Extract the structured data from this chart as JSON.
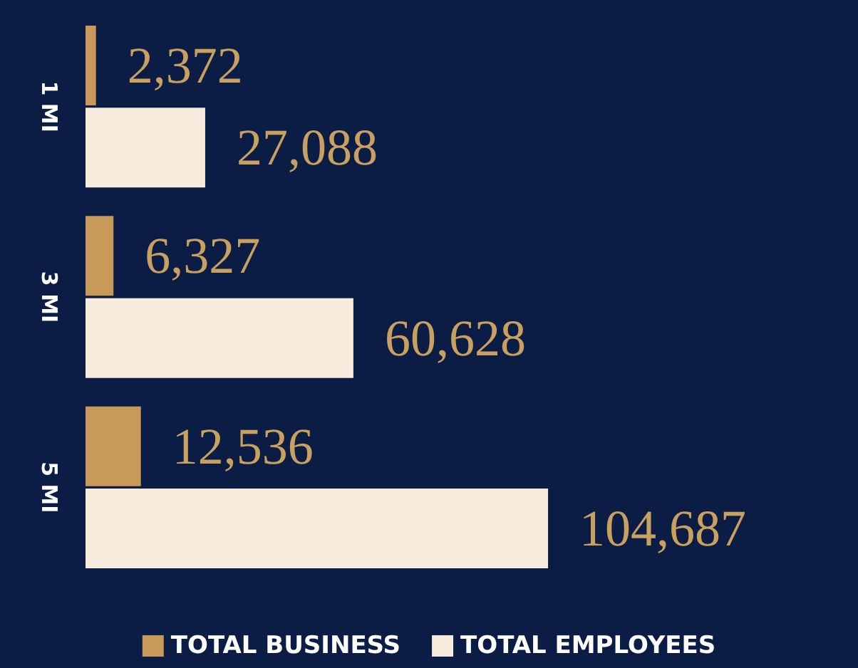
{
  "chart_data": {
    "type": "bar",
    "orientation": "horizontal",
    "categories": [
      "1 MI",
      "3 MI",
      "5 MI"
    ],
    "series": [
      {
        "name": "TOTAL BUSINESS",
        "color": "#c79a5a",
        "values": [
          2372,
          6327,
          12536
        ],
        "value_labels": [
          "2,372",
          "6,327",
          "12,536"
        ]
      },
      {
        "name": "TOTAL EMPLOYEES",
        "color": "#f7ebdd",
        "values": [
          27088,
          60628,
          104687
        ],
        "value_labels": [
          "27,088",
          "60,628",
          "104,687"
        ]
      }
    ],
    "legend": "bottom",
    "tick_labels": "y"
  }
}
